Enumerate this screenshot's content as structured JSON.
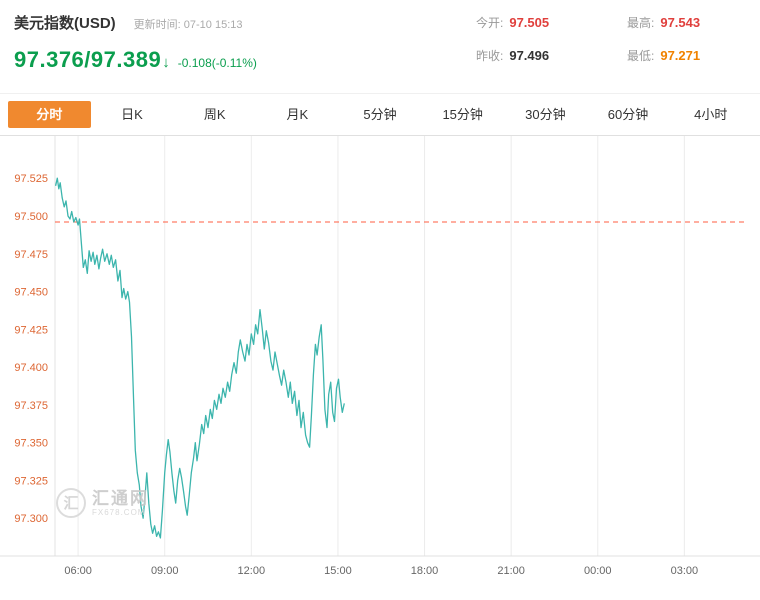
{
  "header": {
    "title": "美元指数(USD)",
    "update_time": "更新时间: 07-10 15:13",
    "quote": {
      "bid": "97.376",
      "separator": " / ",
      "ask": "97.389",
      "arrow": "↓",
      "change": "-0.108(-0.11%)",
      "color": "#0b9e4e"
    },
    "stats": [
      {
        "id": "open",
        "label": "今开:",
        "value": "97.505",
        "color": "#e03f3c"
      },
      {
        "id": "high",
        "label": "最高:",
        "value": "97.543",
        "color": "#e03f3c"
      },
      {
        "id": "prev-close",
        "label": "昨收:",
        "value": "97.496",
        "color": "#333333"
      },
      {
        "id": "low",
        "label": "最低:",
        "value": "97.271",
        "color": "#f08200"
      }
    ]
  },
  "tabs": {
    "active_bg": "#f0892f",
    "items": [
      {
        "id": "fenshi",
        "label": "分时",
        "active": true
      },
      {
        "id": "ri-k",
        "label": "日K",
        "active": false
      },
      {
        "id": "zhou-k",
        "label": "周K",
        "active": false
      },
      {
        "id": "yue-k",
        "label": "月K",
        "active": false
      },
      {
        "id": "5min",
        "label": "5分钟",
        "active": false
      },
      {
        "id": "15min",
        "label": "15分钟",
        "active": false
      },
      {
        "id": "30min",
        "label": "30分钟",
        "active": false
      },
      {
        "id": "60min",
        "label": "60分钟",
        "active": false
      },
      {
        "id": "4hour",
        "label": "4小时",
        "active": false
      }
    ]
  },
  "watermark": {
    "name": "汇通网",
    "domain": "FX678.COM",
    "logo_char": "汇"
  },
  "chart_data": {
    "type": "line",
    "title": "美元指数(USD) 分时走势",
    "line_color": "#3cb5ad",
    "axis_label_color": "#dd6633",
    "x_label_color": "#666666",
    "grid_color": "#ececec",
    "prev_close": 97.496,
    "prev_close_line_color": "#ff5d40",
    "y_ticks": [
      97.525,
      97.5,
      97.475,
      97.45,
      97.425,
      97.4,
      97.375,
      97.35,
      97.325,
      97.3
    ],
    "y_range": [
      97.275,
      97.545
    ],
    "x_ticks": [
      "06:00",
      "09:00",
      "12:00",
      "15:00",
      "18:00",
      "21:00",
      "00:00",
      "03:00"
    ],
    "x_tick_hours": [
      6,
      9,
      12,
      15,
      18,
      21,
      24,
      27
    ],
    "x_range_hours": [
      5.2,
      29.1
    ],
    "points": [
      [
        5.22,
        97.52
      ],
      [
        5.28,
        97.525
      ],
      [
        5.33,
        97.518
      ],
      [
        5.38,
        97.522
      ],
      [
        5.45,
        97.512
      ],
      [
        5.52,
        97.506
      ],
      [
        5.58,
        97.51
      ],
      [
        5.65,
        97.5
      ],
      [
        5.72,
        97.498
      ],
      [
        5.78,
        97.503
      ],
      [
        5.85,
        97.496
      ],
      [
        5.92,
        97.499
      ],
      [
        6.0,
        97.494
      ],
      [
        6.05,
        97.498
      ],
      [
        6.12,
        97.48
      ],
      [
        6.18,
        97.466
      ],
      [
        6.25,
        97.471
      ],
      [
        6.32,
        97.462
      ],
      [
        6.38,
        97.477
      ],
      [
        6.45,
        97.47
      ],
      [
        6.52,
        97.476
      ],
      [
        6.58,
        97.468
      ],
      [
        6.65,
        97.474
      ],
      [
        6.72,
        97.465
      ],
      [
        6.78,
        97.472
      ],
      [
        6.85,
        97.478
      ],
      [
        6.92,
        97.47
      ],
      [
        7.0,
        97.475
      ],
      [
        7.08,
        97.468
      ],
      [
        7.15,
        97.474
      ],
      [
        7.22,
        97.466
      ],
      [
        7.3,
        97.471
      ],
      [
        7.38,
        97.457
      ],
      [
        7.45,
        97.464
      ],
      [
        7.52,
        97.446
      ],
      [
        7.58,
        97.452
      ],
      [
        7.65,
        97.445
      ],
      [
        7.72,
        97.45
      ],
      [
        7.78,
        97.443
      ],
      [
        7.85,
        97.42
      ],
      [
        7.92,
        97.38
      ],
      [
        7.98,
        97.345
      ],
      [
        8.05,
        97.33
      ],
      [
        8.12,
        97.322
      ],
      [
        8.18,
        97.308
      ],
      [
        8.25,
        97.3
      ],
      [
        8.32,
        97.315
      ],
      [
        8.38,
        97.33
      ],
      [
        8.45,
        97.31
      ],
      [
        8.52,
        97.296
      ],
      [
        8.58,
        97.29
      ],
      [
        8.65,
        97.295
      ],
      [
        8.72,
        97.288
      ],
      [
        8.78,
        97.291
      ],
      [
        8.85,
        97.287
      ],
      [
        8.92,
        97.305
      ],
      [
        9.0,
        97.33
      ],
      [
        9.06,
        97.342
      ],
      [
        9.12,
        97.352
      ],
      [
        9.18,
        97.344
      ],
      [
        9.25,
        97.33
      ],
      [
        9.32,
        97.318
      ],
      [
        9.38,
        97.31
      ],
      [
        9.45,
        97.325
      ],
      [
        9.52,
        97.333
      ],
      [
        9.58,
        97.327
      ],
      [
        9.65,
        97.318
      ],
      [
        9.72,
        97.308
      ],
      [
        9.78,
        97.302
      ],
      [
        9.85,
        97.315
      ],
      [
        9.92,
        97.33
      ],
      [
        10.0,
        97.34
      ],
      [
        10.06,
        97.35
      ],
      [
        10.12,
        97.338
      ],
      [
        10.2,
        97.349
      ],
      [
        10.28,
        97.362
      ],
      [
        10.35,
        97.356
      ],
      [
        10.42,
        97.368
      ],
      [
        10.5,
        97.36
      ],
      [
        10.58,
        97.372
      ],
      [
        10.65,
        97.366
      ],
      [
        10.72,
        97.378
      ],
      [
        10.8,
        97.372
      ],
      [
        10.88,
        97.382
      ],
      [
        10.95,
        97.376
      ],
      [
        11.02,
        97.386
      ],
      [
        11.1,
        97.38
      ],
      [
        11.18,
        97.39
      ],
      [
        11.25,
        97.384
      ],
      [
        11.32,
        97.395
      ],
      [
        11.4,
        97.403
      ],
      [
        11.48,
        97.396
      ],
      [
        11.55,
        97.41
      ],
      [
        11.62,
        97.418
      ],
      [
        11.7,
        97.41
      ],
      [
        11.78,
        97.404
      ],
      [
        11.85,
        97.415
      ],
      [
        11.92,
        97.408
      ],
      [
        12.0,
        97.422
      ],
      [
        12.08,
        97.415
      ],
      [
        12.15,
        97.428
      ],
      [
        12.22,
        97.422
      ],
      [
        12.3,
        97.438
      ],
      [
        12.38,
        97.425
      ],
      [
        12.45,
        97.412
      ],
      [
        12.52,
        97.424
      ],
      [
        12.6,
        97.416
      ],
      [
        12.68,
        97.404
      ],
      [
        12.75,
        97.398
      ],
      [
        12.82,
        97.41
      ],
      [
        12.9,
        97.402
      ],
      [
        12.98,
        97.394
      ],
      [
        13.05,
        97.388
      ],
      [
        13.12,
        97.398
      ],
      [
        13.2,
        97.39
      ],
      [
        13.28,
        97.38
      ],
      [
        13.35,
        97.39
      ],
      [
        13.42,
        97.376
      ],
      [
        13.5,
        97.384
      ],
      [
        13.58,
        97.368
      ],
      [
        13.65,
        97.378
      ],
      [
        13.72,
        97.36
      ],
      [
        13.8,
        97.37
      ],
      [
        13.88,
        97.355
      ],
      [
        13.95,
        97.35
      ],
      [
        14.02,
        97.347
      ],
      [
        14.08,
        97.368
      ],
      [
        14.15,
        97.395
      ],
      [
        14.22,
        97.415
      ],
      [
        14.28,
        97.408
      ],
      [
        14.35,
        97.42
      ],
      [
        14.42,
        97.428
      ],
      [
        14.48,
        97.405
      ],
      [
        14.55,
        97.372
      ],
      [
        14.62,
        97.36
      ],
      [
        14.68,
        97.382
      ],
      [
        14.75,
        97.39
      ],
      [
        14.82,
        97.37
      ],
      [
        14.88,
        97.364
      ],
      [
        14.95,
        97.386
      ],
      [
        15.02,
        97.392
      ],
      [
        15.08,
        97.38
      ],
      [
        15.15,
        97.37
      ],
      [
        15.22,
        97.376
      ]
    ]
  }
}
